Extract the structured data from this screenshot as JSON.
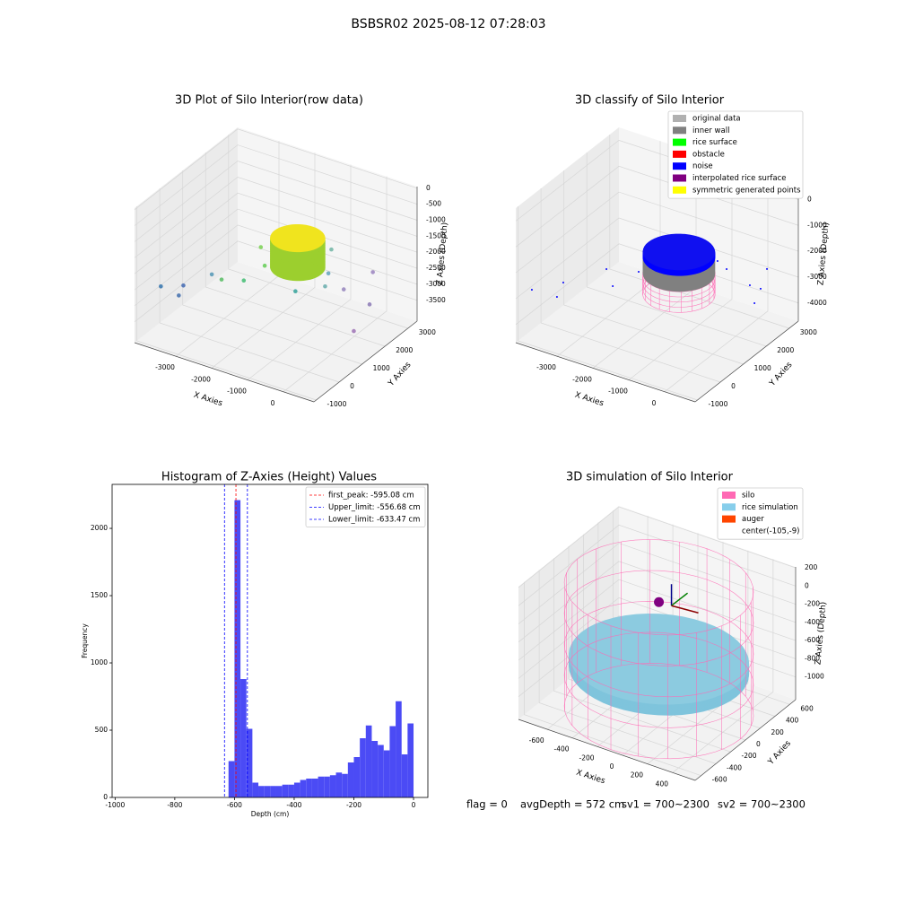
{
  "title": "BSBSR02 2025-08-12 07:28:03",
  "footer": {
    "flag": "flag = 0",
    "avg": "avgDepth = 572 cm",
    "sv1": "sv1 = 700~2300",
    "sv2": "sv2 = 700~2300"
  },
  "chart_data": [
    {
      "type": "scatter3d",
      "title": "3D Plot of Silo Interior(row data)",
      "xlabel": "X Axies",
      "ylabel": "Y Axies",
      "zlabel": "Z Axies (Depth)",
      "xlim": [
        -4150,
        850
      ],
      "ylim": [
        -1100,
        3400
      ],
      "zlim": [
        -4150,
        50
      ],
      "xticks": [
        -3000,
        -2000,
        -1000,
        0
      ],
      "yticks": [
        -1000,
        0,
        1000,
        2000,
        3000
      ],
      "zticks": [
        0,
        -500,
        -1000,
        -1500,
        -2000,
        -2500,
        -3000,
        -3500
      ],
      "points": {
        "x": [
          -3800,
          -3300,
          -3300,
          -2700,
          -2300,
          -2000,
          -1800,
          -2100,
          -1200,
          -500,
          -300,
          0,
          100,
          300,
          -600,
          -900
        ],
        "y": [
          -500,
          -300,
          -500,
          0,
          -200,
          300,
          900,
          1200,
          1300,
          1500,
          2000,
          2800,
          2500,
          1500,
          1800,
          2400
        ],
        "z": [
          -2600,
          -2500,
          -2700,
          -2100,
          -2000,
          -2200,
          -2000,
          -1700,
          -2800,
          -2500,
          -2800,
          -2600,
          -3400,
          -3600,
          -2300,
          -2000
        ],
        "colors": [
          "#3d7ab0",
          "#4a6fb5",
          "#4a74b0",
          "#5b9bb8",
          "#5fbf6a",
          "#4cc07a",
          "#6ccf5e",
          "#7fd35a",
          "#3fa7a0",
          "#6fb0b0",
          "#9a8bc0",
          "#a08ac2",
          "#9080b8",
          "#a279b8",
          "#6aa8c0",
          "#78b8a8"
        ]
      },
      "cylinders": [
        {
          "center": [
            -1200,
            1400
          ],
          "radius": 650,
          "z": [
            -2100,
            -1200
          ],
          "style": "solid",
          "color": "#9ccf2e",
          "top_color": "#f0e41e"
        }
      ]
    },
    {
      "type": "scatter3d",
      "title": "3D classify of Silo Interior",
      "xlabel": "X Axies",
      "ylabel": "Y Axies",
      "zlabel": "Z Axies (Depth)",
      "xlim": [
        -4150,
        850
      ],
      "ylim": [
        -1100,
        3400
      ],
      "zlim": [
        -4700,
        500
      ],
      "xticks": [
        -3000,
        -2000,
        -1000,
        0
      ],
      "yticks": [
        -1000,
        0,
        1000,
        2000,
        3000
      ],
      "zticks": [
        0,
        -1000,
        -2000,
        -3000,
        -4000
      ],
      "series": [
        {
          "name": "original data",
          "color": "#b0b0b0"
        },
        {
          "name": "inner wall",
          "color": "#808080"
        },
        {
          "name": "rice surface",
          "color": "#00ff00"
        },
        {
          "name": "obstacle",
          "color": "#ff0000"
        },
        {
          "name": "noise",
          "color": "#0000ff",
          "x": [
            -3980,
            -3310,
            -3545,
            -3035,
            -2485,
            -2335,
            -1060,
            -680,
            180,
            720,
            480,
            110
          ],
          "y": [
            -664,
            -618,
            25,
            1110,
            525,
            1420,
            2865,
            2667,
            2334,
            1690,
            2334,
            3190
          ],
          "z": [
            -2880,
            -2880,
            -2880,
            -2880,
            -2880,
            -2880,
            -2880,
            -2880,
            -2880,
            -2880,
            -2880,
            -2880
          ]
        },
        {
          "name": "interpolated rice surface",
          "color": "#800080"
        },
        {
          "name": "symmetric generated points",
          "color": "#ffff00"
        }
      ],
      "legend": "upper right",
      "cylinders": [
        {
          "center": [
            -1200,
            1400
          ],
          "radius": 850,
          "z": [
            -3210,
            -2410
          ],
          "style": "wire",
          "color": "#ff69b4"
        },
        {
          "center": [
            -1200,
            1400
          ],
          "radius": 850,
          "z": [
            -2410,
            -1800
          ],
          "style": "solid",
          "color": "#808080",
          "top_color": "#8a8a8a"
        },
        {
          "center": [
            -1200,
            1400
          ],
          "radius": 850,
          "z": [
            -1800,
            -1580
          ],
          "style": "solid",
          "color": "#0000ff",
          "top_color": "#1010f0"
        }
      ]
    },
    {
      "type": "hist",
      "title": "Histogram of Z-Axies (Height) Values",
      "xlabel": "Depth (cm)",
      "ylabel": "Frequency",
      "bins": [
        -620,
        -600,
        -580,
        -560,
        -540,
        -520,
        -500,
        -480,
        -460,
        -440,
        -420,
        -400,
        -380,
        -360,
        -340,
        -320,
        -300,
        -280,
        -260,
        -240,
        -220,
        -200,
        -180,
        -160,
        -140,
        -120,
        -100,
        -80,
        -60,
        -40,
        -20,
        0
      ],
      "counts": [
        270,
        2210,
        880,
        510,
        110,
        85,
        85,
        85,
        85,
        95,
        95,
        110,
        130,
        140,
        140,
        155,
        155,
        165,
        185,
        175,
        260,
        300,
        440,
        535,
        420,
        390,
        350,
        530,
        715,
        320,
        550
      ],
      "color": "#4b4bf5",
      "xlim": [
        -1010,
        48
      ],
      "ylim": [
        0,
        2327
      ],
      "xticks": [
        -1000,
        -800,
        -600,
        -400,
        -200,
        0
      ],
      "yticks": [
        0,
        500,
        1000,
        1500,
        2000
      ],
      "vlines": [
        {
          "name": "first_peak: -595.08 cm",
          "value": -595.08,
          "color": "#ff0000"
        },
        {
          "name": "Upper_limit: -556.68 cm",
          "value": -556.68,
          "color": "#0000ff"
        },
        {
          "name": "Lower_limit: -633.47 cm",
          "value": -633.47,
          "color": "#0000ff"
        }
      ],
      "legend": "upper right"
    },
    {
      "type": "sim3d",
      "title": "3D simulation of Silo Interior",
      "xlabel": "X Axies",
      "ylabel": "Y Axies",
      "zlabel": "Z Axies (Depth)",
      "xlim": [
        -830,
        580
      ],
      "ylim": [
        -680,
        680
      ],
      "zlim": [
        -1250,
        210
      ],
      "xticks": [
        -600,
        -400,
        -200,
        0,
        200,
        400
      ],
      "yticks": [
        -600,
        -400,
        -200,
        0,
        200,
        400,
        600
      ],
      "zticks": [
        200,
        0,
        -200,
        -400,
        -600,
        -800,
        -1000
      ],
      "series": [
        {
          "name": "silo",
          "color": "#ff69b4"
        },
        {
          "name": "rice simulation",
          "color": "#87ceeb"
        },
        {
          "name": "auger",
          "color": "#ff4500"
        },
        {
          "name": "center(-105,-9)",
          "color": "none"
        }
      ],
      "legend": "upper right",
      "cylinders": [
        {
          "center": [
            -105,
            -9
          ],
          "radius": 620,
          "z": [
            -800,
            -680
          ],
          "style": "solid",
          "color": "#7fc4dc",
          "top_color": "#8ccbe0"
        },
        {
          "center": [
            -105,
            -9
          ],
          "radius": 650,
          "z": [
            -1250,
            110
          ],
          "style": "wire",
          "color": "#ff69b4"
        }
      ],
      "auger": {
        "x": -105,
        "y": -9,
        "z": -53,
        "color": "#800080"
      }
    }
  ]
}
